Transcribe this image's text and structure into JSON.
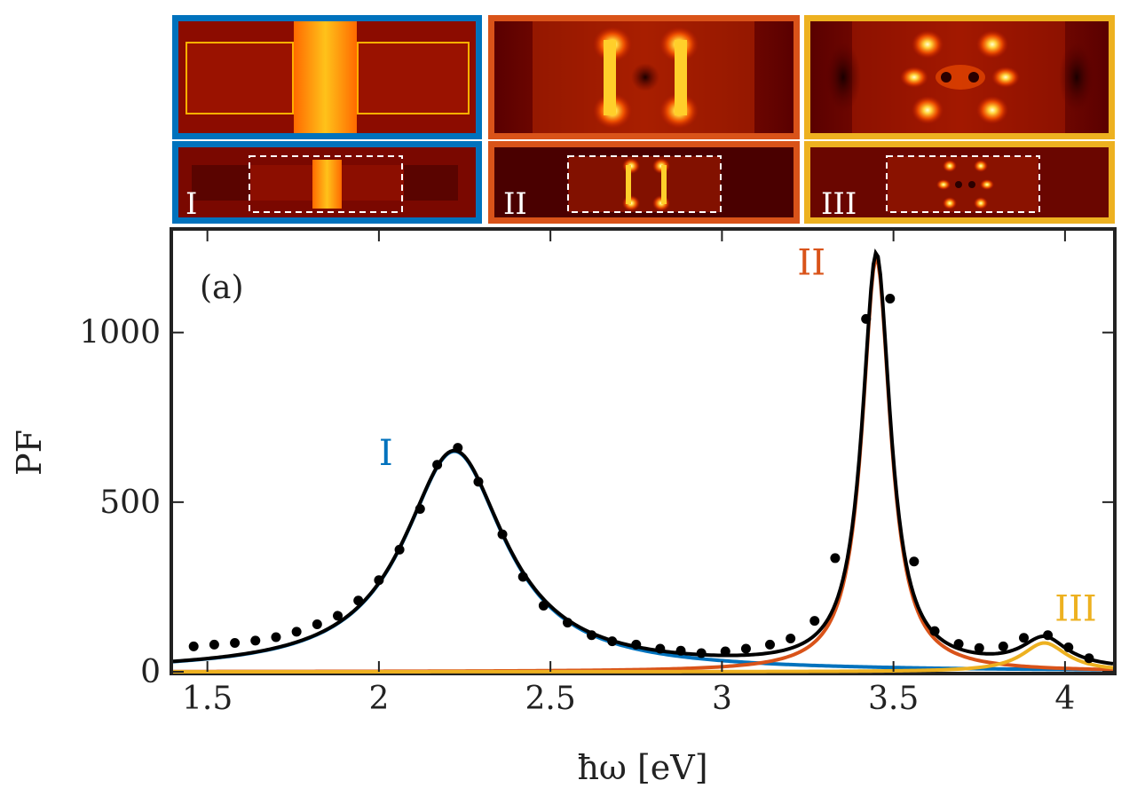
{
  "chart_data": {
    "type": "line",
    "title": "",
    "panel_label": "(a)",
    "xlabel": "ħω [eV]",
    "ylabel": "PF",
    "xlim": [
      1.4,
      4.14
    ],
    "ylim": [
      0,
      1300
    ],
    "x_ticks": [
      1.5,
      2,
      2.5,
      3,
      3.5,
      4
    ],
    "x_tick_labels": [
      "1.5",
      "2",
      "2.5",
      "3",
      "3.5",
      "4"
    ],
    "y_ticks": [
      0,
      500,
      1000
    ],
    "y_tick_labels": [
      "0",
      "500",
      "1000"
    ],
    "grid": false,
    "modes": [
      {
        "name": "I",
        "color": "#0072bd",
        "center": 2.22,
        "peak": 650,
        "hwhm": 0.18,
        "label_x": 2.0,
        "label_y": 610
      },
      {
        "name": "II",
        "color": "#d95319",
        "center": 3.45,
        "peak": 1220,
        "hwhm": 0.05,
        "label_x": 3.22,
        "label_y": 1170
      },
      {
        "name": "III",
        "color": "#edb120",
        "center": 3.94,
        "peak": 85,
        "hwhm": 0.08,
        "label_x": 3.97,
        "label_y": 150
      }
    ],
    "total_color": "#000000",
    "points_color": "#000000",
    "points": [
      [
        1.46,
        75
      ],
      [
        1.52,
        80
      ],
      [
        1.58,
        85
      ],
      [
        1.64,
        92
      ],
      [
        1.7,
        102
      ],
      [
        1.76,
        118
      ],
      [
        1.82,
        140
      ],
      [
        1.88,
        165
      ],
      [
        1.94,
        210
      ],
      [
        2.0,
        270
      ],
      [
        2.06,
        360
      ],
      [
        2.12,
        480
      ],
      [
        2.17,
        610
      ],
      [
        2.23,
        660
      ],
      [
        2.29,
        560
      ],
      [
        2.36,
        405
      ],
      [
        2.42,
        280
      ],
      [
        2.48,
        195
      ],
      [
        2.55,
        145
      ],
      [
        2.62,
        108
      ],
      [
        2.68,
        90
      ],
      [
        2.75,
        80
      ],
      [
        2.82,
        68
      ],
      [
        2.88,
        62
      ],
      [
        2.94,
        55
      ],
      [
        3.01,
        60
      ],
      [
        3.07,
        68
      ],
      [
        3.14,
        80
      ],
      [
        3.2,
        98
      ],
      [
        3.27,
        150
      ],
      [
        3.33,
        335
      ],
      [
        3.42,
        1040
      ],
      [
        3.49,
        1100
      ],
      [
        3.56,
        325
      ],
      [
        3.62,
        120
      ],
      [
        3.69,
        82
      ],
      [
        3.75,
        70
      ],
      [
        3.82,
        75
      ],
      [
        3.88,
        100
      ],
      [
        3.95,
        108
      ],
      [
        4.01,
        72
      ],
      [
        4.07,
        40
      ]
    ]
  },
  "insets": {
    "top_row": [
      {
        "name": "mode-I-zoom",
        "border": "#0072bd"
      },
      {
        "name": "mode-II-zoom",
        "border": "#d95319"
      },
      {
        "name": "mode-III-zoom",
        "border": "#edb120"
      }
    ],
    "bottom_row": [
      {
        "name": "mode-I-full",
        "border": "#0072bd",
        "label": "I"
      },
      {
        "name": "mode-II-full",
        "border": "#d95319",
        "label": "II"
      },
      {
        "name": "mode-III-full",
        "border": "#edb120",
        "label": "III"
      }
    ]
  }
}
